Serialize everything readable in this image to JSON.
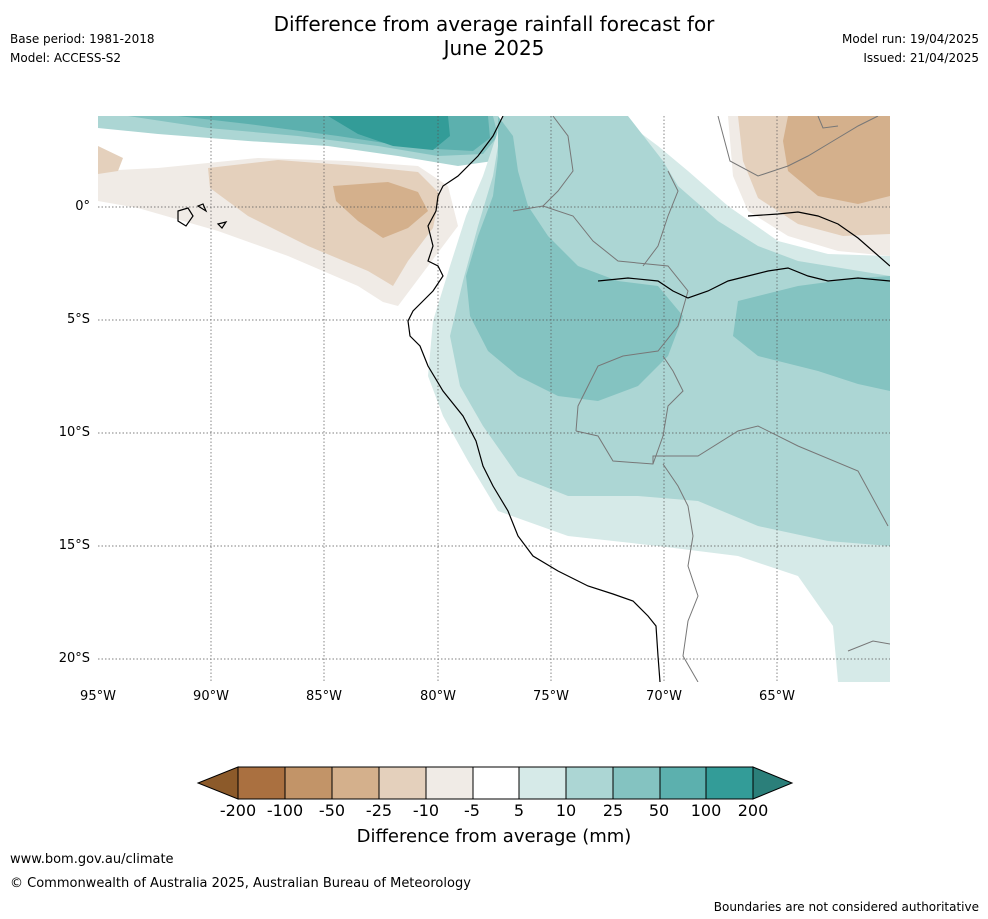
{
  "title_line1": "Difference from average rainfall forecast for",
  "title_line2": "June 2025",
  "base_period": "Base period: 1981-2018",
  "model": "Model: ACCESS-S2",
  "model_run": "Model run: 19/04/2025",
  "issued": "Issued: 21/04/2025",
  "lat_labels": [
    "0°",
    "5°S",
    "10°S",
    "15°S",
    "20°S"
  ],
  "lon_labels": [
    "95°W",
    "90°W",
    "85°W",
    "80°W",
    "75°W",
    "70°W",
    "65°W"
  ],
  "colorbar": {
    "title": "Difference from average (mm)",
    "ticks": [
      "-200",
      "-100",
      "-50",
      "-25",
      "-10",
      "-5",
      "5",
      "10",
      "25",
      "50",
      "100",
      "200"
    ],
    "colors": [
      "#8c5a2a",
      "#aa7040",
      "#c29468",
      "#d4b08c",
      "#e4d0bc",
      "#f0ebe6",
      "#ffffff",
      "#d6eae8",
      "#acd6d4",
      "#84c3c1",
      "#5cb0ae",
      "#339c98",
      "#2b7f7a"
    ]
  },
  "footer": {
    "url": "www.bom.gov.au/climate",
    "copyright": "© Commonwealth of Australia 2025, Australian Bureau of Meteorology",
    "disclaimer": "Boundaries are not considered authoritative"
  }
}
